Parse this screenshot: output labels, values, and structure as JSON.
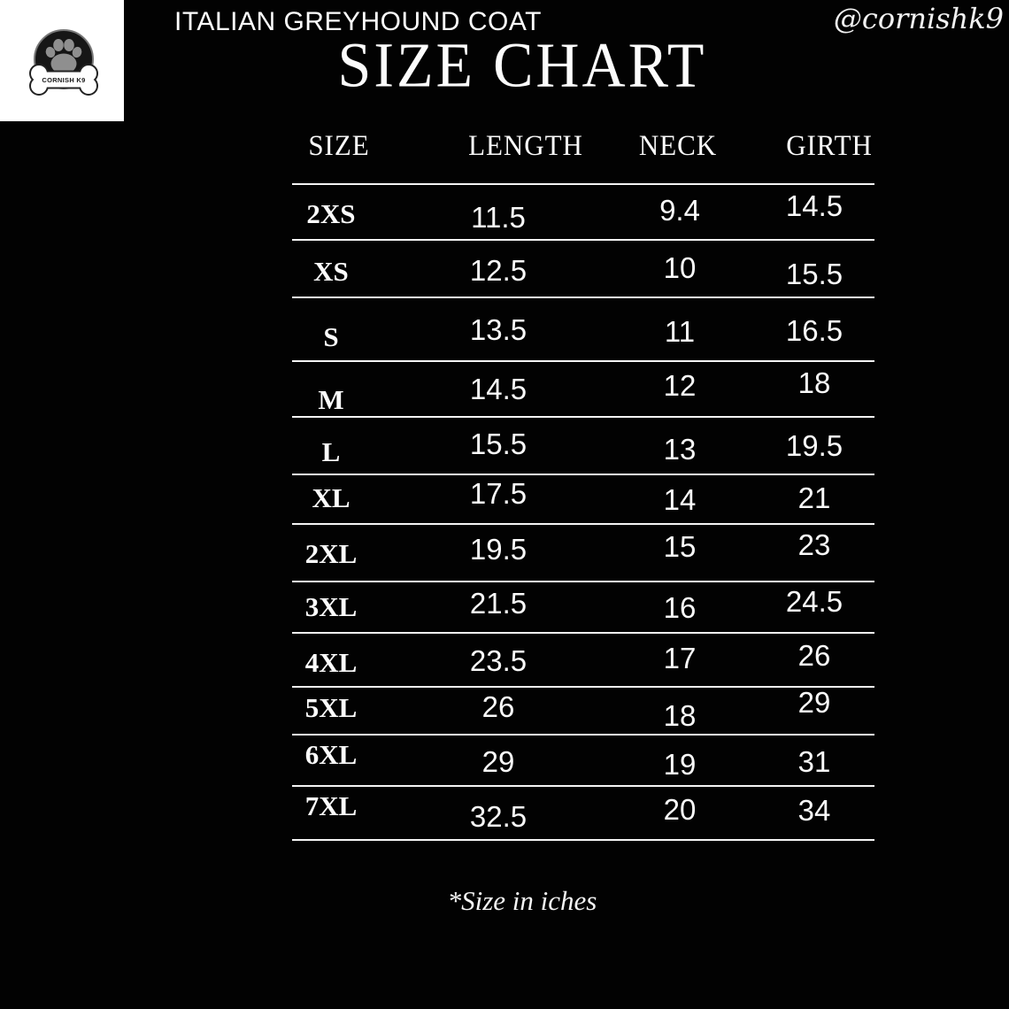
{
  "header": {
    "product_title": "ITALIAN GREYHOUND COAT",
    "page_title": "SIZE CHART",
    "handle": "@cornishk9",
    "logo_text": "CORNISH K9"
  },
  "table": {
    "columns": [
      "SIZE",
      "LENGTH",
      "NECK",
      "GIRTH"
    ],
    "rows": [
      {
        "size": "2XS",
        "length": "11.5",
        "neck": "9.4",
        "girth": "14.5"
      },
      {
        "size": "XS",
        "length": "12.5",
        "neck": "10",
        "girth": "15.5"
      },
      {
        "size": "S",
        "length": "13.5",
        "neck": "11",
        "girth": "16.5"
      },
      {
        "size": "M",
        "length": "14.5",
        "neck": "12",
        "girth": "18"
      },
      {
        "size": "L",
        "length": "15.5",
        "neck": "13",
        "girth": "19.5"
      },
      {
        "size": "XL",
        "length": "17.5",
        "neck": "14",
        "girth": "21"
      },
      {
        "size": "2XL",
        "length": "19.5",
        "neck": "15",
        "girth": "23"
      },
      {
        "size": "3XL",
        "length": "21.5",
        "neck": "16",
        "girth": "24.5"
      },
      {
        "size": "4XL",
        "length": "23.5",
        "neck": "17",
        "girth": "26"
      },
      {
        "size": "5XL",
        "length": "26",
        "neck": "18",
        "girth": "29"
      },
      {
        "size": "6XL",
        "length": "29",
        "neck": "19",
        "girth": "31"
      },
      {
        "size": "7XL",
        "length": "32.5",
        "neck": "20",
        "girth": "34"
      }
    ]
  },
  "footnote": "*Size in iches",
  "colors": {
    "background": "#000000",
    "foreground": "#ffffff",
    "logo_background": "#ffffff",
    "logo_badge": "#161616",
    "logo_paw": "#8f8f8f"
  }
}
